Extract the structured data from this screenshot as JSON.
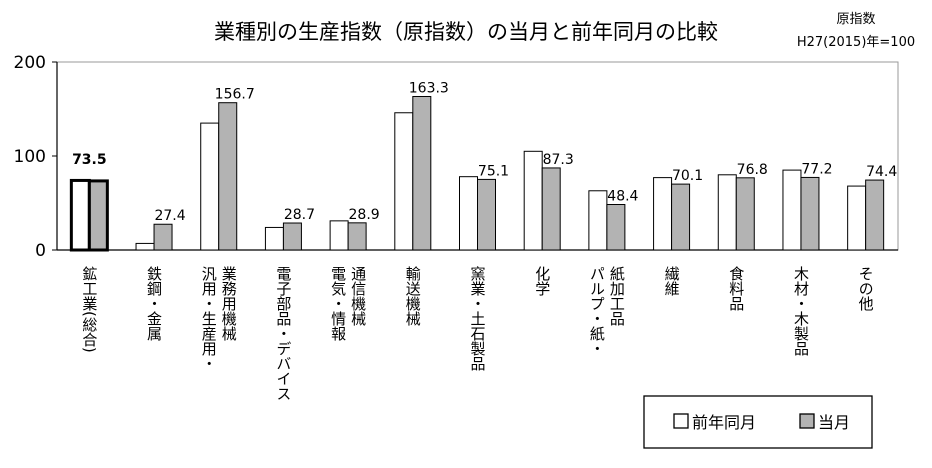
{
  "chart_data": {
    "type": "bar",
    "title": "業種別の生産指数（原指数）の当月と前年同月の比較",
    "note_line1": "原指数",
    "note_line2": "H27(2015)年=100",
    "ylim": [
      0,
      200
    ],
    "yticks": [
      0,
      100,
      200
    ],
    "categories": [
      "鉱工業(総合)",
      "鉄鋼・金属",
      "汎用・生産用・業務用機械",
      "電子部品・デバイス",
      "電気・情報通信機械",
      "輸送機械",
      "窯業・土石製品",
      "化学",
      "パルプ・紙・紙加工品",
      "繊維",
      "食料品",
      "木材・木製品",
      "その他"
    ],
    "category_columns": [
      [
        "鉱工業(総合)"
      ],
      [
        "鉄鋼・金属"
      ],
      [
        "汎用・生産用・",
        "業務用機械"
      ],
      [
        "電子部品・デバイス"
      ],
      [
        "電気・情報",
        "通信機械"
      ],
      [
        "輸送機械"
      ],
      [
        "窯業・土石製品"
      ],
      [
        "化学"
      ],
      [
        "パルプ・紙・",
        "紙加工品"
      ],
      [
        "繊維"
      ],
      [
        "食料品"
      ],
      [
        "木材・木製品"
      ],
      [
        "その他"
      ]
    ],
    "series": [
      {
        "name": "前年同月",
        "color": "#ffffff",
        "values": [
          74.0,
          7.0,
          135.0,
          24.0,
          31.0,
          146.0,
          78.0,
          105.0,
          63.0,
          77.0,
          80.0,
          85.0,
          68.0
        ]
      },
      {
        "name": "当月",
        "color": "#b3b3b3",
        "values": [
          73.5,
          27.4,
          156.7,
          28.7,
          28.9,
          163.3,
          75.1,
          87.3,
          48.4,
          70.1,
          76.8,
          77.2,
          74.4
        ]
      }
    ],
    "data_labels": [
      "73.5",
      "27.4",
      "156.7",
      "28.7",
      "28.9",
      "163.3",
      "75.1",
      "87.3",
      "48.4",
      "70.1",
      "76.8",
      "77.2",
      "74.4"
    ],
    "grid": false,
    "legend_position": "bottom-right"
  }
}
